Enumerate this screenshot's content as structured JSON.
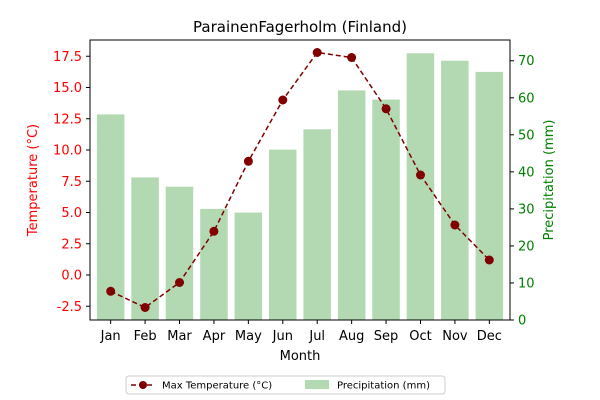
{
  "chart_data": {
    "type": "bar+line",
    "title": "ParainenFagerholm (Finland)",
    "xlabel": "Month",
    "categories": [
      "Jan",
      "Feb",
      "Mar",
      "Apr",
      "May",
      "Jun",
      "Jul",
      "Aug",
      "Sep",
      "Oct",
      "Nov",
      "Dec"
    ],
    "left_axis": {
      "label": "Temperature (°C)",
      "color": "#ff0000",
      "ylim": [
        -3.6,
        18.8
      ],
      "ticks": [
        "-2.5",
        "0.0",
        "2.5",
        "5.0",
        "7.5",
        "10.0",
        "12.5",
        "15.0",
        "17.5"
      ],
      "tick_values": [
        -2.5,
        0,
        2.5,
        5,
        7.5,
        10,
        12.5,
        15,
        17.5
      ]
    },
    "right_axis": {
      "label": "Precipitation (mm)",
      "color": "#008000",
      "ylim": [
        0,
        75.6
      ],
      "ticks": [
        "0",
        "10",
        "20",
        "30",
        "40",
        "50",
        "60",
        "70"
      ],
      "tick_values": [
        0,
        10,
        20,
        30,
        40,
        50,
        60,
        70
      ]
    },
    "series": [
      {
        "name": "Max Temperature (°C)",
        "type": "line",
        "axis": "left",
        "color": "#800000",
        "style": "dashed",
        "marker": "circle",
        "values": [
          -1.3,
          -2.6,
          -0.6,
          3.5,
          9.1,
          14.0,
          17.8,
          17.4,
          13.3,
          8.0,
          4.0,
          1.2
        ]
      },
      {
        "name": "Precipitation (mm)",
        "type": "bar",
        "axis": "right",
        "color": "#b2d9b2",
        "values": [
          55.5,
          38.5,
          36.0,
          30.0,
          29.0,
          46.0,
          51.5,
          62.0,
          59.5,
          72.0,
          70.0,
          67.0
        ]
      }
    ],
    "legend": {
      "placement": "bottom-center",
      "entries": [
        "Max Temperature (°C)",
        "Precipitation (mm)"
      ]
    },
    "grid": false
  }
}
